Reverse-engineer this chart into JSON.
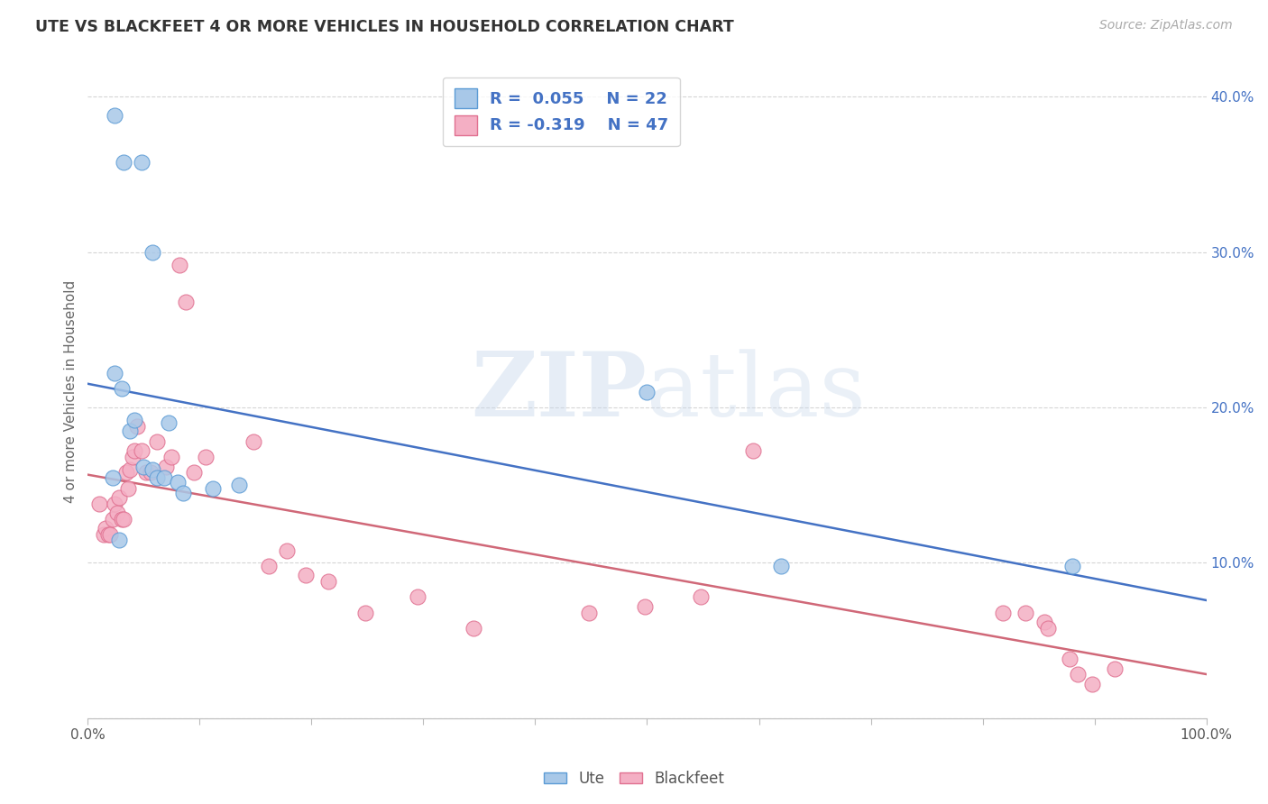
{
  "title": "UTE VS BLACKFEET 4 OR MORE VEHICLES IN HOUSEHOLD CORRELATION CHART",
  "source": "Source: ZipAtlas.com",
  "ylabel": "4 or more Vehicles in Household",
  "xlim": [
    0.0,
    1.0
  ],
  "ylim": [
    0.0,
    0.42
  ],
  "xticks": [
    0.0,
    0.1,
    0.2,
    0.3,
    0.4,
    0.5,
    0.6,
    0.7,
    0.8,
    0.9,
    1.0
  ],
  "xticklabels": [
    "0.0%",
    "",
    "",
    "",
    "",
    "",
    "",
    "",
    "",
    "",
    "100.0%"
  ],
  "yticks": [
    0.0,
    0.1,
    0.2,
    0.3,
    0.4
  ],
  "yticklabels": [
    "",
    "10.0%",
    "20.0%",
    "30.0%",
    "40.0%"
  ],
  "watermark_left": "ZIP",
  "watermark_right": "atlas",
  "ute_R": 0.055,
  "ute_N": 22,
  "blackfeet_R": -0.319,
  "blackfeet_N": 47,
  "ute_face_color": "#a8c8e8",
  "blackfeet_face_color": "#f4afc4",
  "ute_edge_color": "#5b9bd5",
  "blackfeet_edge_color": "#e07090",
  "ute_line_color": "#4472c4",
  "blackfeet_line_color": "#d06878",
  "legend_text_color": "#4472c4",
  "grid_color": "#d5d5d5",
  "bg_color": "#ffffff",
  "ute_x": [
    0.024,
    0.032,
    0.048,
    0.024,
    0.03,
    0.038,
    0.042,
    0.05,
    0.058,
    0.062,
    0.068,
    0.072,
    0.08,
    0.085,
    0.112,
    0.135,
    0.5,
    0.62,
    0.88,
    0.022,
    0.058,
    0.028
  ],
  "ute_y": [
    0.388,
    0.358,
    0.358,
    0.222,
    0.212,
    0.185,
    0.192,
    0.162,
    0.16,
    0.155,
    0.155,
    0.19,
    0.152,
    0.145,
    0.148,
    0.15,
    0.21,
    0.098,
    0.098,
    0.155,
    0.3,
    0.115
  ],
  "blackfeet_x": [
    0.01,
    0.014,
    0.016,
    0.018,
    0.02,
    0.022,
    0.024,
    0.026,
    0.028,
    0.03,
    0.032,
    0.034,
    0.036,
    0.038,
    0.04,
    0.042,
    0.044,
    0.048,
    0.052,
    0.056,
    0.062,
    0.07,
    0.075,
    0.082,
    0.088,
    0.095,
    0.105,
    0.148,
    0.162,
    0.178,
    0.195,
    0.215,
    0.248,
    0.295,
    0.345,
    0.448,
    0.498,
    0.548,
    0.595,
    0.818,
    0.838,
    0.855,
    0.858,
    0.878,
    0.885,
    0.898,
    0.918
  ],
  "blackfeet_y": [
    0.138,
    0.118,
    0.122,
    0.118,
    0.118,
    0.128,
    0.138,
    0.132,
    0.142,
    0.128,
    0.128,
    0.158,
    0.148,
    0.16,
    0.168,
    0.172,
    0.188,
    0.172,
    0.158,
    0.158,
    0.178,
    0.162,
    0.168,
    0.292,
    0.268,
    0.158,
    0.168,
    0.178,
    0.098,
    0.108,
    0.092,
    0.088,
    0.068,
    0.078,
    0.058,
    0.068,
    0.072,
    0.078,
    0.172,
    0.068,
    0.068,
    0.062,
    0.058,
    0.038,
    0.028,
    0.022,
    0.032
  ]
}
